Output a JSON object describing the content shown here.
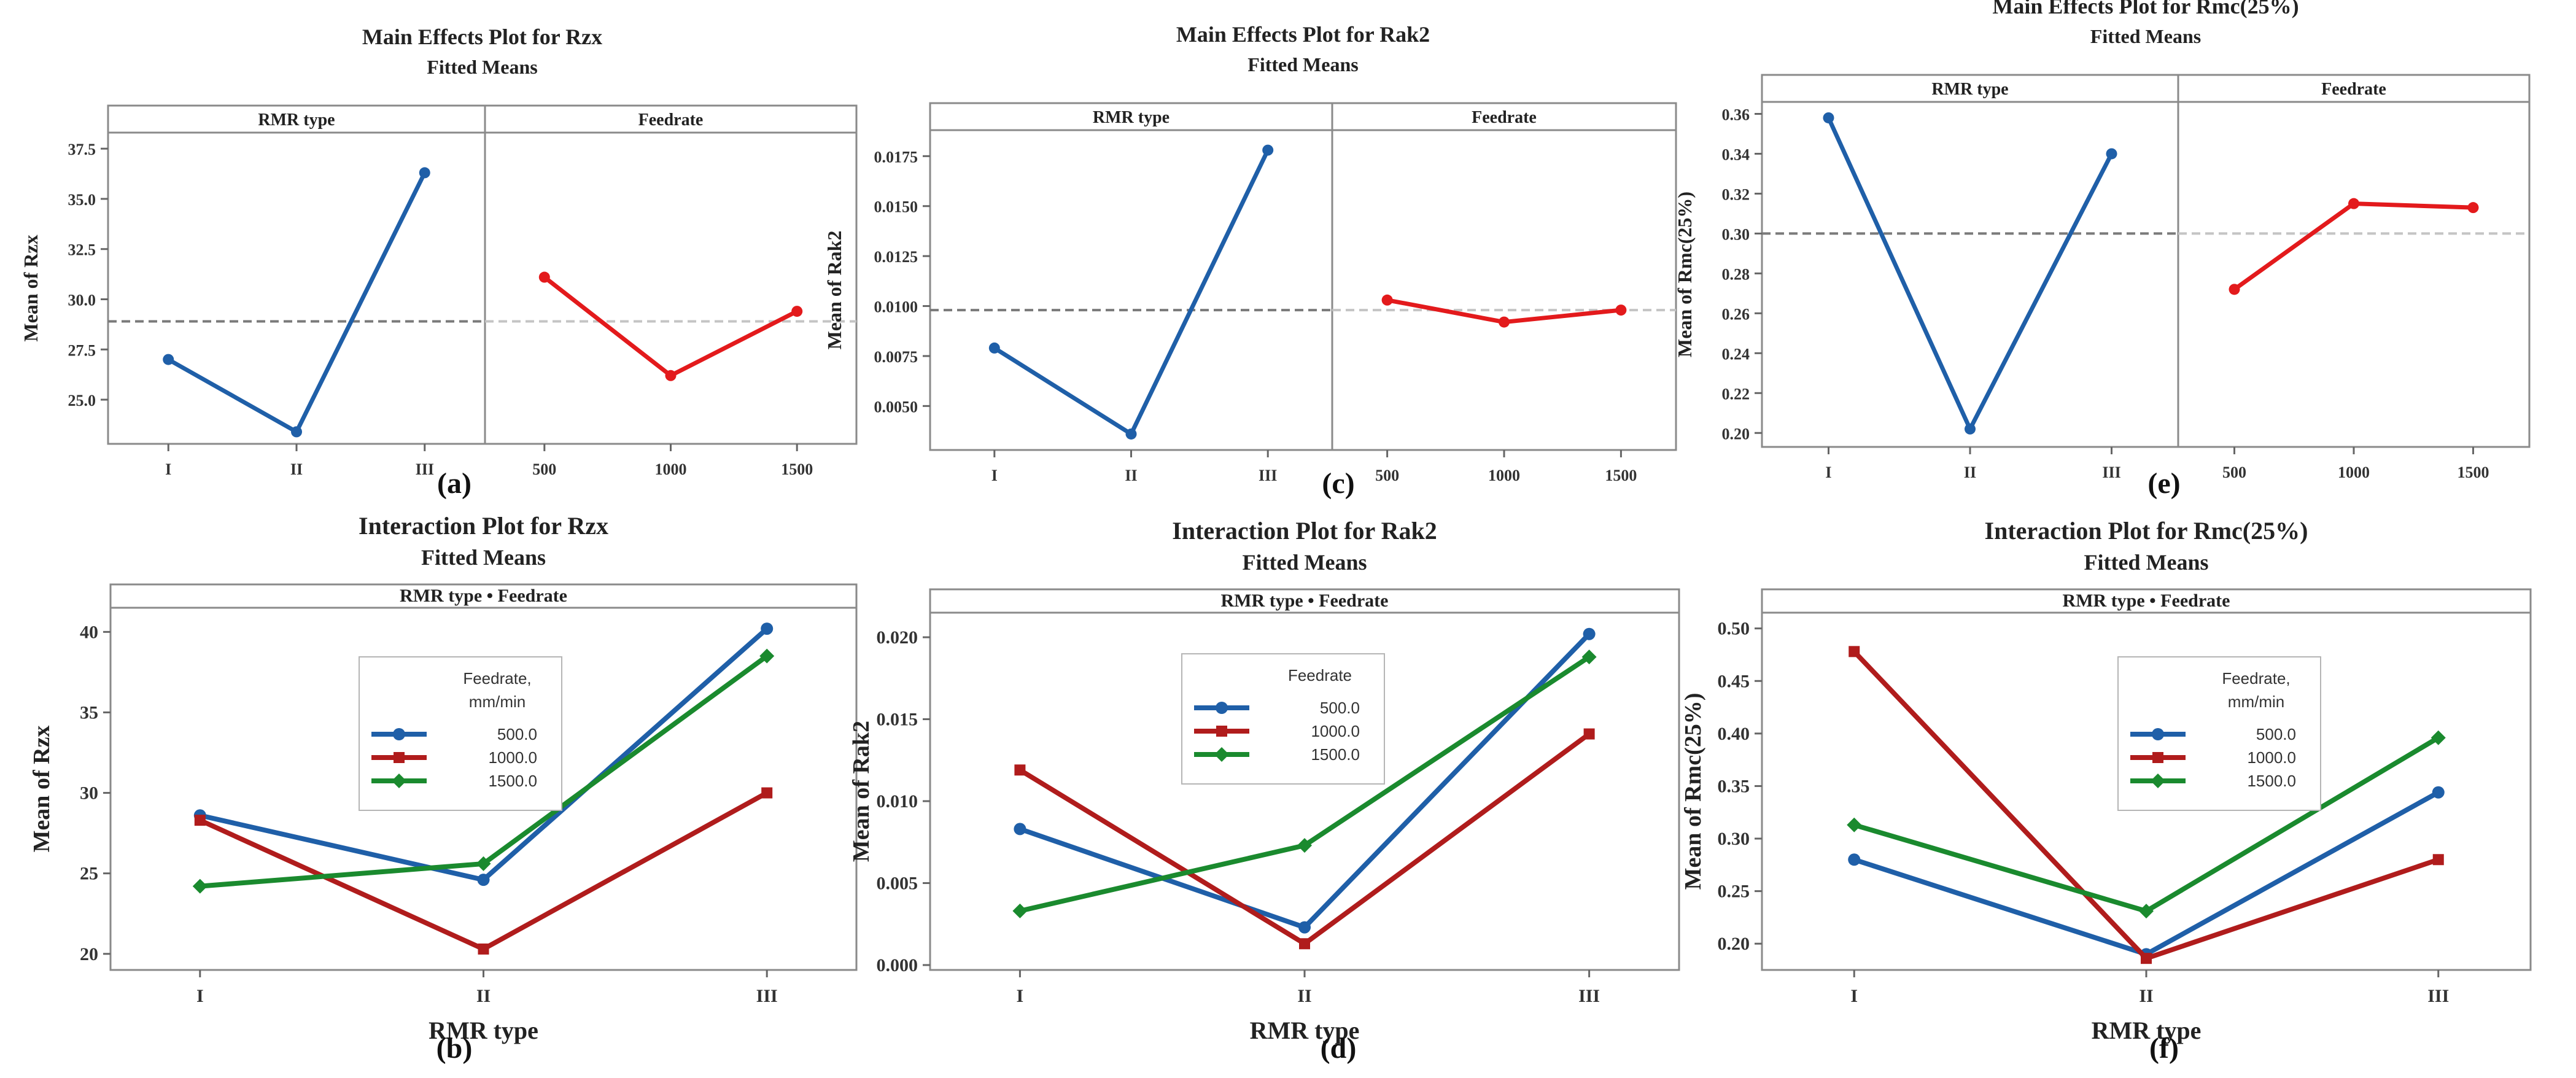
{
  "chart_data": [
    {
      "type": "main_effects",
      "title": "Main Effects Plot for Rzx",
      "subtitle": "Fitted Means",
      "ylabel": "Mean of Rzx",
      "caption": "(a)",
      "ylim": [
        22.8,
        38.3
      ],
      "yticks": [
        "25.0",
        "27.5",
        "30.0",
        "32.5",
        "35.0",
        "37.5"
      ],
      "reference_mean": 28.9,
      "factors": [
        {
          "name": "RMR type",
          "levels": [
            "I",
            "II",
            "III"
          ],
          "values": [
            27.0,
            23.4,
            36.3
          ],
          "color": "#1f5fa8"
        },
        {
          "name": "Feedrate",
          "levels": [
            "500",
            "1000",
            "1500"
          ],
          "values": [
            31.1,
            26.2,
            29.4
          ],
          "color": "#e31a1c"
        }
      ]
    },
    {
      "type": "main_effects",
      "title": "Main Effects Plot for Rak2",
      "subtitle": "Fitted Means",
      "ylabel": "Mean of Rak2",
      "caption": "(c)",
      "ylim": [
        0.0028,
        0.0188
      ],
      "yticks": [
        "0.0050",
        "0.0075",
        "0.0100",
        "0.0125",
        "0.0150",
        "0.0175"
      ],
      "reference_mean": 0.0098,
      "factors": [
        {
          "name": "RMR type",
          "levels": [
            "I",
            "II",
            "III"
          ],
          "values": [
            0.0079,
            0.0036,
            0.0178
          ],
          "color": "#1f5fa8"
        },
        {
          "name": "Feedrate",
          "levels": [
            "500",
            "1000",
            "1500"
          ],
          "values": [
            0.0103,
            0.0092,
            0.0098
          ],
          "color": "#e31a1c"
        }
      ]
    },
    {
      "type": "main_effects",
      "title": "Main Effects Plot for Rmc(25%)",
      "subtitle": "Fitted Means",
      "ylabel": "Mean of Rmc(25%)",
      "caption": "(e)",
      "ylim": [
        0.193,
        0.366
      ],
      "yticks": [
        "0.20",
        "0.22",
        "0.24",
        "0.26",
        "0.28",
        "0.30",
        "0.32",
        "0.34",
        "0.36"
      ],
      "reference_mean": 0.3,
      "factors": [
        {
          "name": "RMR type",
          "levels": [
            "I",
            "II",
            "III"
          ],
          "values": [
            0.358,
            0.202,
            0.34
          ],
          "color": "#1f5fa8"
        },
        {
          "name": "Feedrate",
          "levels": [
            "500",
            "1000",
            "1500"
          ],
          "values": [
            0.272,
            0.315,
            0.313
          ],
          "color": "#e31a1c"
        }
      ]
    },
    {
      "type": "interaction",
      "title": "Interaction Plot for Rzx",
      "subtitle": "Fitted Means",
      "strip": "RMR type • Feedrate",
      "xlabel": "RMR type",
      "ylabel": "Mean of Rzx",
      "caption": "(b)",
      "categories": [
        "I",
        "II",
        "III"
      ],
      "ylim": [
        19.0,
        41.5
      ],
      "yticks": [
        "20",
        "25",
        "30",
        "35",
        "40"
      ],
      "legend_title": [
        "Feedrate,",
        "mm/min"
      ],
      "series": [
        {
          "name": "500.0",
          "values": [
            28.6,
            24.6,
            40.2
          ],
          "color": "#1f5fa8",
          "marker": "circle"
        },
        {
          "name": "1000.0",
          "values": [
            28.3,
            20.3,
            30.0
          ],
          "color": "#b01c1c",
          "marker": "square"
        },
        {
          "name": "1500.0",
          "values": [
            24.2,
            25.6,
            38.5
          ],
          "color": "#1a8a2e",
          "marker": "diamond"
        }
      ]
    },
    {
      "type": "interaction",
      "title": "Interaction Plot for Rak2",
      "subtitle": "Fitted Means",
      "strip": "RMR type • Feedrate",
      "xlabel": "RMR type",
      "ylabel": "Mean of Rak2",
      "caption": "(d)",
      "categories": [
        "I",
        "II",
        "III"
      ],
      "ylim": [
        -0.0003,
        0.0215
      ],
      "yticks": [
        "0.000",
        "0.005",
        "0.010",
        "0.015",
        "0.020"
      ],
      "legend_title": [
        "Feedrate"
      ],
      "series": [
        {
          "name": "500.0",
          "values": [
            0.0083,
            0.0023,
            0.0202
          ],
          "color": "#1f5fa8",
          "marker": "circle"
        },
        {
          "name": "1000.0",
          "values": [
            0.0119,
            0.0013,
            0.0141
          ],
          "color": "#b01c1c",
          "marker": "square"
        },
        {
          "name": "1500.0",
          "values": [
            0.0033,
            0.0073,
            0.0188
          ],
          "color": "#1a8a2e",
          "marker": "diamond"
        }
      ]
    },
    {
      "type": "interaction",
      "title": "Interaction Plot for Rmc(25%)",
      "subtitle": "Fitted Means",
      "strip": "RMR type • Feedrate",
      "xlabel": "RMR type",
      "ylabel": "Mean of Rmc(25%)",
      "caption": "(f)",
      "categories": [
        "I",
        "II",
        "III"
      ],
      "ylim": [
        0.175,
        0.515
      ],
      "yticks": [
        "0.20",
        "0.25",
        "0.30",
        "0.35",
        "0.40",
        "0.45",
        "0.50"
      ],
      "legend_title": [
        "Feedrate,",
        "mm/min"
      ],
      "series": [
        {
          "name": "500.0",
          "values": [
            0.28,
            0.19,
            0.344
          ],
          "color": "#1f5fa8",
          "marker": "circle"
        },
        {
          "name": "1000.0",
          "values": [
            0.478,
            0.186,
            0.28
          ],
          "color": "#b01c1c",
          "marker": "square"
        },
        {
          "name": "1500.0",
          "values": [
            0.313,
            0.231,
            0.396
          ],
          "color": "#1a8a2e",
          "marker": "diamond"
        }
      ]
    }
  ]
}
